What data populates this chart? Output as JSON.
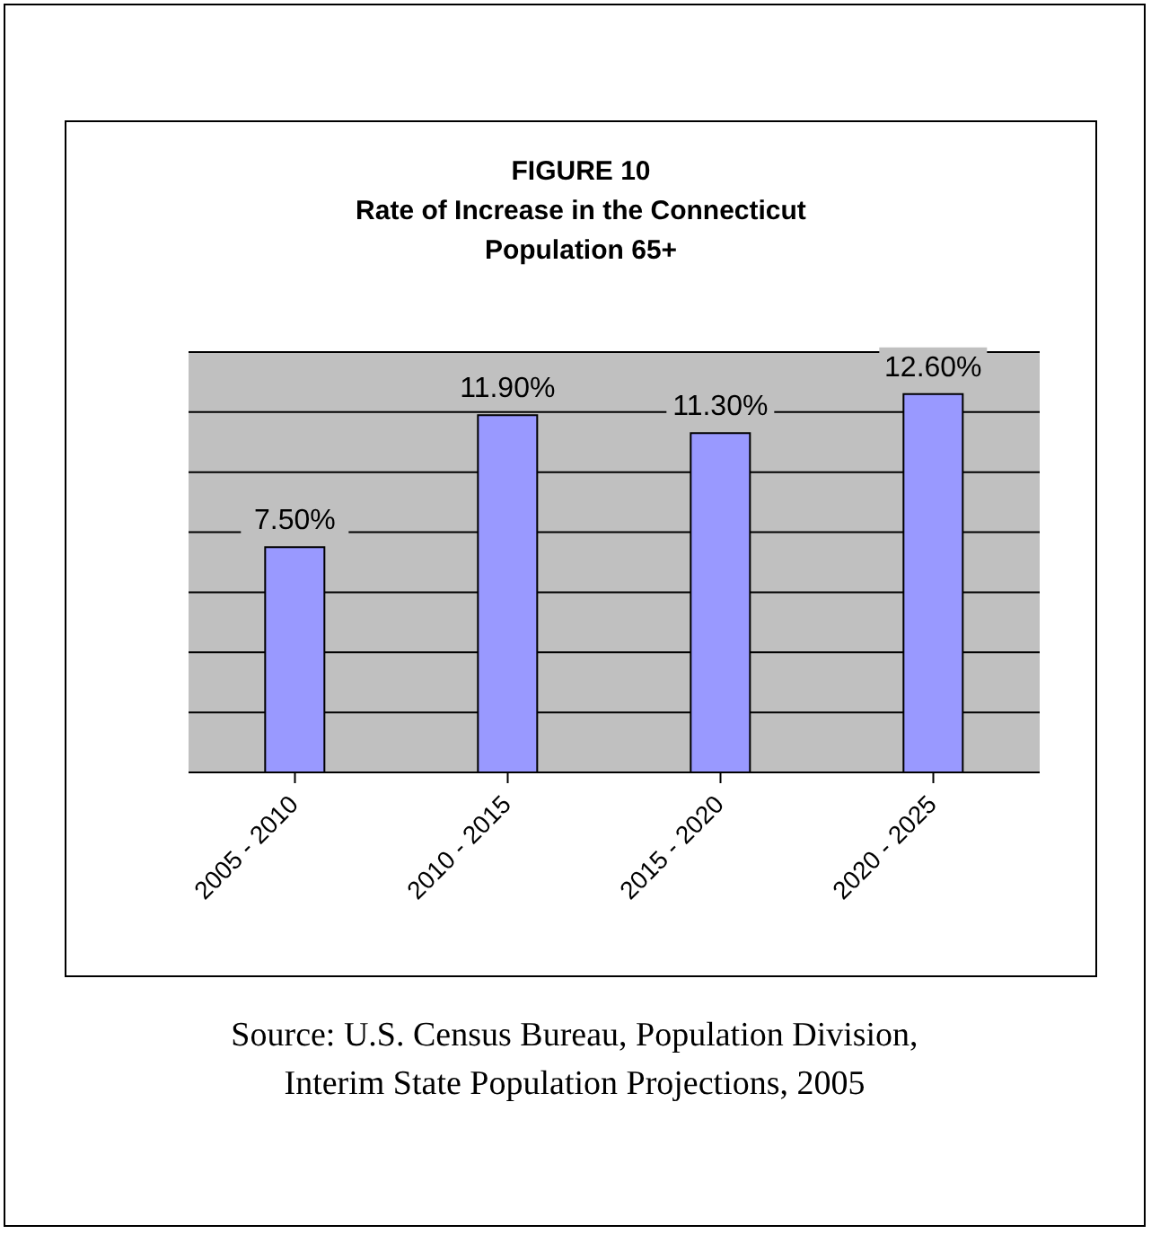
{
  "chart_data": {
    "type": "bar",
    "title": "FIGURE 10",
    "subtitle": "Rate of Increase in the Connecticut Population 65+",
    "categories": [
      "2005 - 2010",
      "2010 - 2015",
      "2015 - 2020",
      "2020 - 2025"
    ],
    "values": [
      7.5,
      11.9,
      11.3,
      12.6
    ],
    "value_labels": [
      "7.50%",
      "11.90%",
      "11.30%",
      "12.60%"
    ],
    "color": "#9999ff",
    "ylim": [
      0,
      14
    ],
    "yticks": [
      {
        "value": 0,
        "label": null
      },
      {
        "value": 2,
        "label": null
      },
      {
        "value": 4,
        "label": null
      },
      {
        "value": 6,
        "label": null
      },
      {
        "value": 8,
        "label": null
      },
      {
        "value": 10,
        "label": null
      },
      {
        "value": 12,
        "label": null
      },
      {
        "value": 14,
        "label": null
      }
    ],
    "tick_labels": "x",
    "grid": "y",
    "annotations": [
      "Source: U.S. Census Bureau, Population Division, Interim State Population Projections, 2005"
    ]
  }
}
